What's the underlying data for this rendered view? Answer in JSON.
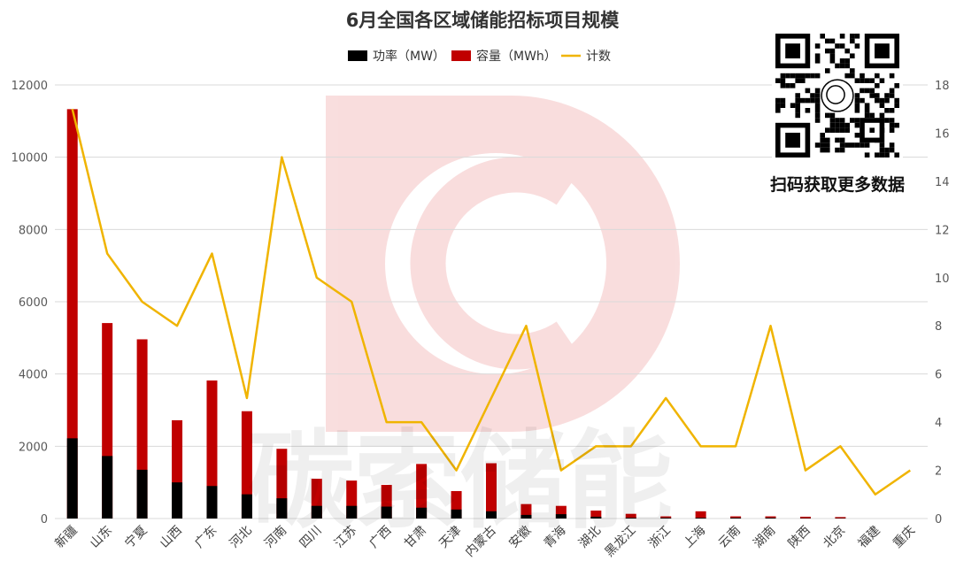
{
  "chart_data": {
    "type": "bar",
    "title": "6月全国各区域储能招标项目规模",
    "categories": [
      "新疆",
      "山东",
      "宁夏",
      "山西",
      "广东",
      "河北",
      "河南",
      "四川",
      "江苏",
      "广西",
      "甘肃",
      "天津",
      "内蒙古",
      "安徽",
      "青海",
      "湖北",
      "黑龙江",
      "浙江",
      "上海",
      "云南",
      "湖南",
      "陕西",
      "北京",
      "福建",
      "重庆"
    ],
    "series": [
      {
        "name": "功率（MW）",
        "kind": "bar",
        "axis": "left",
        "color": "#000000",
        "values": [
          2220,
          1730,
          1350,
          1000,
          900,
          670,
          560,
          350,
          350,
          330,
          300,
          250,
          200,
          100,
          120,
          50,
          20,
          20,
          20,
          20,
          20,
          10,
          10,
          0,
          0
        ]
      },
      {
        "name": "容量（MWh）",
        "kind": "bar",
        "axis": "left",
        "color": "#c00000",
        "values": [
          11330,
          5410,
          4960,
          2720,
          3820,
          2970,
          1930,
          1100,
          1050,
          930,
          1510,
          760,
          1530,
          400,
          350,
          220,
          130,
          60,
          200,
          60,
          60,
          50,
          40,
          0,
          0
        ]
      },
      {
        "name": "计数",
        "kind": "line",
        "axis": "right",
        "color": "#f0b400",
        "values": [
          17,
          11,
          9,
          8,
          11,
          5,
          15,
          10,
          9,
          4,
          4,
          2,
          5,
          8,
          2,
          3,
          3,
          5,
          3,
          3,
          8,
          2,
          3,
          1,
          2
        ]
      }
    ],
    "ylim_left": [
      0,
      12000
    ],
    "yticks_left": [
      "0",
      "2000",
      "4000",
      "6000",
      "8000",
      "10000",
      "12000"
    ],
    "ylim_right": [
      0,
      18
    ],
    "yticks_right": [
      "0",
      "2",
      "4",
      "6",
      "8",
      "10",
      "12",
      "14",
      "16",
      "18"
    ],
    "grid": true,
    "legend_position": "top-center"
  },
  "overlay": {
    "qr_caption": "扫码获取更多数据",
    "watermark_text": "碳索储能"
  }
}
